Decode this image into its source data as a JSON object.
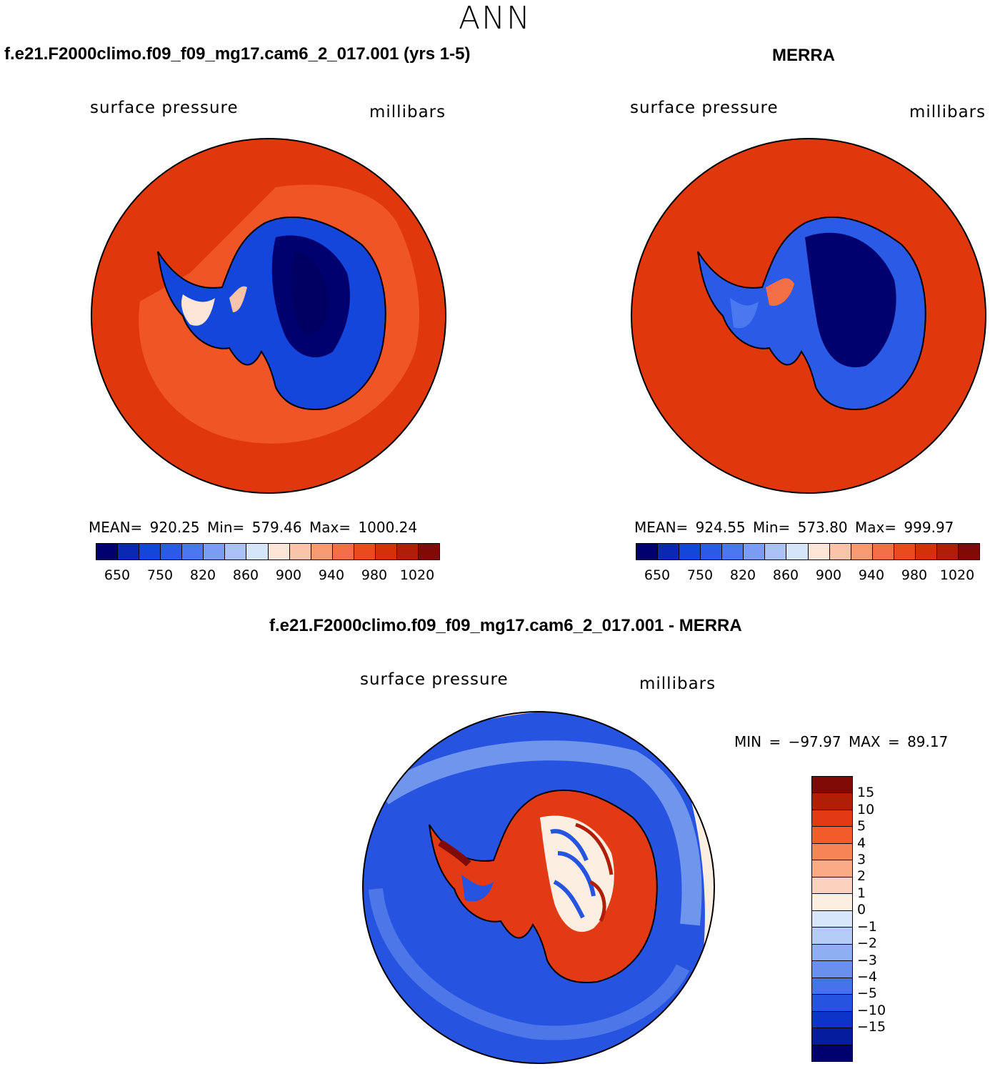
{
  "figure_title": "ANN",
  "panels": [
    {
      "title": "f.e21.F2000climo.f09_f09_mg17.cam6_2_017.001 (yrs 1-5)",
      "variable": "surface pressure",
      "units": "millibars",
      "stats": {
        "mean_label": "MEAN=",
        "mean": "920.25",
        "min_label": "Min=",
        "min": "579.46",
        "max_label": "Max=",
        "max": "1000.24"
      }
    },
    {
      "title": "MERRA",
      "variable": "surface pressure",
      "units": "millibars",
      "stats": {
        "mean_label": "MEAN=",
        "mean": "924.55",
        "min_label": "Min=",
        "min": "573.80",
        "max_label": "Max=",
        "max": "999.97"
      }
    }
  ],
  "abs_colorbar": {
    "colors": [
      "#00006e",
      "#0a28b4",
      "#1446dc",
      "#2a5ae6",
      "#4a78ee",
      "#7a9cf2",
      "#aac2f6",
      "#d6e6fa",
      "#fde6d8",
      "#f9c4aa",
      "#f69a72",
      "#f37046",
      "#ea4a1e",
      "#d4300a",
      "#b01e08",
      "#800a05"
    ],
    "labels": [
      "650",
      "750",
      "820",
      "860",
      "900",
      "940",
      "980",
      "1020"
    ]
  },
  "diff_panel": {
    "title": "f.e21.F2000climo.f09_f09_mg17.cam6_2_017.001 - MERRA",
    "variable": "surface pressure",
    "units": "millibars",
    "minmax": "MIN = −97.97 MAX =   89.17"
  },
  "diff_colorbar": {
    "colors": [
      "#800a05",
      "#b01e08",
      "#e23a14",
      "#f25c2a",
      "#f68456",
      "#f9ab86",
      "#fcd2bc",
      "#fdeee2",
      "#d8e6fa",
      "#b4ccf6",
      "#8eb0f2",
      "#6890ec",
      "#4472e8",
      "#2654e0",
      "#0c34c8",
      "#061c9e",
      "#00006e"
    ],
    "labels": [
      "15",
      "10",
      "5",
      "4",
      "3",
      "2",
      "1",
      "0",
      "−1",
      "−2",
      "−3",
      "−4",
      "−5",
      "−10",
      "−15"
    ]
  },
  "colors": {
    "land_outline": "#000000",
    "ocean_model": "#e0380c",
    "ocean_model_inner": "#f25a28",
    "ocean_merra": "#e0380c"
  }
}
